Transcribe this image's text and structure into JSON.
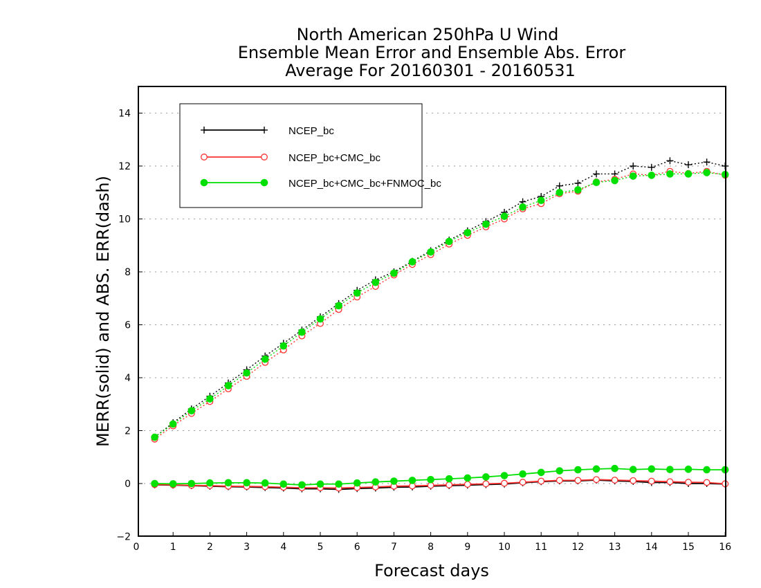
{
  "chart_data": {
    "type": "line",
    "title": [
      "North American 250hPa U Wind",
      "Ensemble Mean Error and Ensemble Abs. Error",
      "Average For 20160301 - 20160531"
    ],
    "xlabel": "Forecast days",
    "ylabel": "MERR(solid) and ABS. ERR(dash)",
    "xlim": [
      0,
      16
    ],
    "ylim": [
      -2,
      15
    ],
    "xticks": [
      0,
      1,
      2,
      3,
      4,
      5,
      6,
      7,
      8,
      9,
      10,
      11,
      12,
      13,
      14,
      15,
      16
    ],
    "yticks": [
      -2,
      0,
      2,
      4,
      6,
      8,
      10,
      12,
      14
    ],
    "grid": "horizontal dotted",
    "legend_position": "top-left",
    "x": [
      0.5,
      1,
      1.5,
      2,
      2.5,
      3,
      3.5,
      4,
      4.5,
      5,
      5.5,
      6,
      6.5,
      7,
      7.5,
      8,
      8.5,
      9,
      9.5,
      10,
      10.5,
      11,
      11.5,
      12,
      12.5,
      13,
      13.5,
      14,
      14.5,
      15,
      15.5,
      16
    ],
    "series": [
      {
        "name": "NCEP_bc",
        "color": "#000000",
        "marker": "plus",
        "mean_error": [
          -0.05,
          -0.06,
          -0.08,
          -0.1,
          -0.12,
          -0.13,
          -0.15,
          -0.17,
          -0.2,
          -0.2,
          -0.22,
          -0.19,
          -0.17,
          -0.14,
          -0.13,
          -0.1,
          -0.08,
          -0.06,
          -0.04,
          -0.02,
          0.03,
          0.07,
          0.1,
          0.1,
          0.13,
          0.1,
          0.08,
          0.04,
          0.04,
          0.0,
          0.0,
          -0.02
        ],
        "abs_error": [
          1.75,
          2.3,
          2.82,
          3.3,
          3.8,
          4.3,
          4.82,
          5.3,
          5.8,
          6.3,
          6.8,
          7.3,
          7.7,
          8.0,
          8.4,
          8.8,
          9.2,
          9.55,
          9.9,
          10.25,
          10.65,
          10.85,
          11.25,
          11.35,
          11.7,
          11.7,
          12.0,
          11.95,
          12.2,
          12.05,
          12.15,
          12.0
        ]
      },
      {
        "name": "NCEP_bc+CMC_bc",
        "color": "#ff3030",
        "marker": "open-circle",
        "mean_error": [
          -0.04,
          -0.05,
          -0.07,
          -0.08,
          -0.1,
          -0.11,
          -0.12,
          -0.14,
          -0.16,
          -0.16,
          -0.17,
          -0.15,
          -0.13,
          -0.1,
          -0.09,
          -0.07,
          -0.05,
          -0.03,
          -0.01,
          0.01,
          0.05,
          0.09,
          0.12,
          0.12,
          0.15,
          0.13,
          0.11,
          0.09,
          0.07,
          0.05,
          0.04,
          -0.01
        ],
        "abs_error": [
          1.68,
          2.18,
          2.65,
          3.1,
          3.58,
          4.05,
          4.58,
          5.05,
          5.58,
          6.05,
          6.58,
          7.05,
          7.45,
          7.88,
          8.28,
          8.65,
          9.05,
          9.38,
          9.7,
          10.0,
          10.38,
          10.58,
          10.95,
          11.05,
          11.4,
          11.5,
          11.7,
          11.65,
          11.8,
          11.72,
          11.8,
          11.65
        ]
      },
      {
        "name": "NCEP_bc+CMC_bc+FNMOC_bc",
        "color": "#00e000",
        "marker": "filled-circle",
        "mean_error": [
          0.0,
          -0.01,
          0.0,
          0.02,
          0.03,
          0.03,
          0.02,
          -0.02,
          -0.05,
          -0.02,
          -0.02,
          0.02,
          0.06,
          0.09,
          0.12,
          0.15,
          0.18,
          0.21,
          0.25,
          0.3,
          0.36,
          0.42,
          0.48,
          0.52,
          0.55,
          0.57,
          0.53,
          0.55,
          0.53,
          0.54,
          0.52,
          0.52
        ],
        "abs_error": [
          1.75,
          2.25,
          2.75,
          3.2,
          3.7,
          4.18,
          4.7,
          5.2,
          5.72,
          6.22,
          6.72,
          7.2,
          7.6,
          7.95,
          8.38,
          8.75,
          9.15,
          9.48,
          9.8,
          10.1,
          10.45,
          10.7,
          11.0,
          11.1,
          11.38,
          11.45,
          11.62,
          11.65,
          11.7,
          11.7,
          11.75,
          11.68
        ]
      }
    ]
  }
}
